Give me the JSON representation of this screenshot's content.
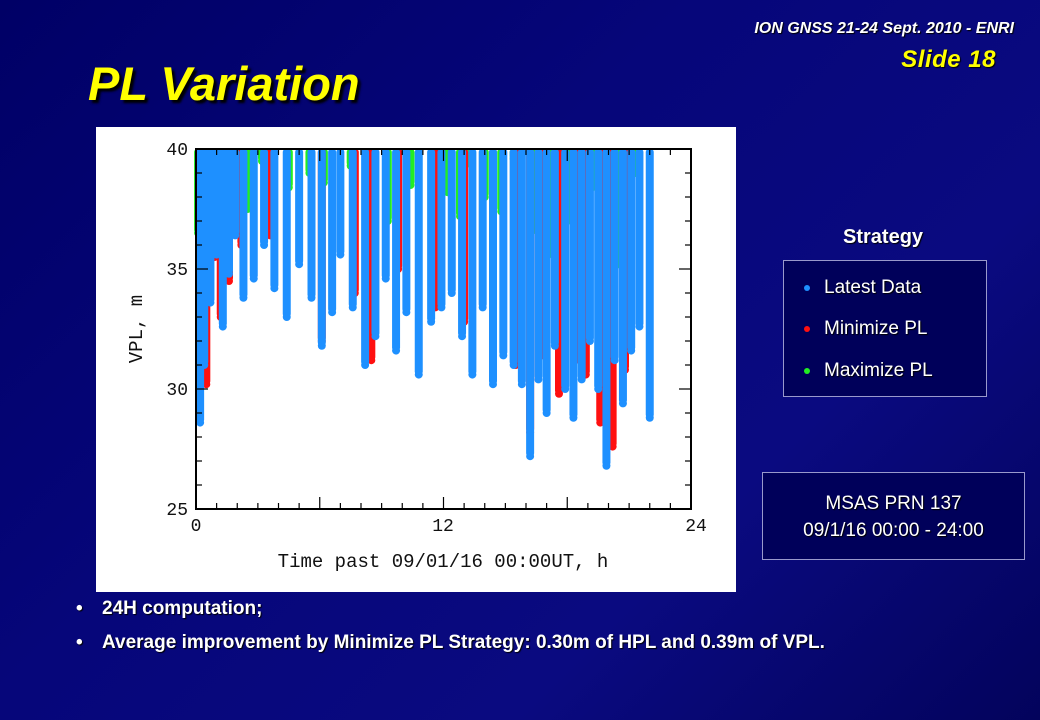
{
  "header": {
    "conference": "ION GNSS 21-24 Sept. 2010 - ENRI",
    "slide_label": "Slide 18",
    "title": "PL Variation"
  },
  "legend": {
    "heading": "Strategy",
    "items": [
      {
        "label": "Latest Data",
        "color": "#1e90ff"
      },
      {
        "label": "Minimize PL",
        "color": "#ff1010"
      },
      {
        "label": "Maximize PL",
        "color": "#22ee22"
      }
    ]
  },
  "info": {
    "line1": "MSAS PRN 137",
    "line2": "09/1/16 00:00 - 24:00"
  },
  "bullets": [
    "24H computation;",
    "Average improvement by Minimize PL Strategy: 0.30m of HPL and 0.39m of VPL."
  ],
  "chart_data": {
    "type": "scatter",
    "xlabel": "Time past 09/01/16 00:00UT, h",
    "ylabel": "VPL, m",
    "xlim": [
      0,
      24
    ],
    "ylim": [
      25,
      40
    ],
    "x_ticks": [
      "0",
      "12",
      "24"
    ],
    "y_ticks": [
      "25",
      "30",
      "35",
      "40"
    ],
    "grid": false,
    "series": [
      {
        "name": "Maximize PL",
        "color": "#22ee22",
        "x": [
          0.1,
          0.3,
          0.5,
          0.8,
          1.1,
          1.4,
          1.7,
          2.0,
          2.5,
          3.2,
          4.5,
          5.5,
          6.2,
          7.5,
          8.4,
          9.3,
          10.4,
          11.5,
          12.2,
          12.8,
          13.2,
          14.0,
          14.8,
          15.4,
          16.3,
          17.1,
          17.5,
          18.2,
          18.6,
          19.2,
          20.0,
          20.5,
          21.0,
          21.3
        ],
        "y": [
          36.5,
          35.0,
          38.2,
          39.6,
          37.0,
          34.8,
          39.2,
          38.0,
          37.5,
          39.5,
          38.4,
          39.0,
          38.6,
          39.3,
          39.6,
          37.0,
          38.5,
          39.8,
          38.2,
          37.2,
          39.4,
          38.0,
          37.4,
          39.6,
          36.6,
          35.6,
          36.8,
          37.0,
          36.2,
          38.4,
          36.5,
          35.2,
          37.8,
          39.0
        ]
      },
      {
        "name": "Minimize PL",
        "color": "#ff1010",
        "x": [
          0.2,
          0.5,
          0.9,
          1.2,
          1.6,
          2.2,
          3.6,
          6.1,
          7.7,
          8.5,
          9.8,
          11.6,
          13.0,
          14.4,
          15.5,
          16.2,
          16.8,
          17.6,
          18.4,
          18.9,
          19.6,
          20.2,
          20.8
        ],
        "y": [
          32.4,
          30.2,
          35.5,
          33.0,
          34.5,
          36.0,
          36.4,
          32.0,
          34.0,
          31.2,
          35.0,
          33.4,
          32.8,
          30.6,
          31.0,
          28.2,
          31.4,
          29.8,
          31.2,
          30.6,
          28.6,
          27.6,
          30.8
        ]
      },
      {
        "name": "Latest Data",
        "color": "#1e90ff",
        "x": [
          0.2,
          0.4,
          0.7,
          1.0,
          1.3,
          1.6,
          1.9,
          2.3,
          2.8,
          3.3,
          3.8,
          4.4,
          5.0,
          5.6,
          6.1,
          6.6,
          7.0,
          7.6,
          8.2,
          8.7,
          9.2,
          9.7,
          10.2,
          10.8,
          11.4,
          11.9,
          12.4,
          12.9,
          13.4,
          13.9,
          14.4,
          14.9,
          15.4,
          15.8,
          16.2,
          16.6,
          17.0,
          17.4,
          17.9,
          18.3,
          18.7,
          19.1,
          19.5,
          19.9,
          20.3,
          20.7,
          21.1,
          21.5,
          22.0
        ],
        "y": [
          28.6,
          31.0,
          33.6,
          35.6,
          32.6,
          34.8,
          36.4,
          33.8,
          34.6,
          36.0,
          34.2,
          33.0,
          35.2,
          33.8,
          31.8,
          33.2,
          35.6,
          33.4,
          31.0,
          32.2,
          34.6,
          31.6,
          33.2,
          30.6,
          32.8,
          33.4,
          34.0,
          32.2,
          30.6,
          33.4,
          30.2,
          31.4,
          31.0,
          30.2,
          27.2,
          30.4,
          29.0,
          31.8,
          30.0,
          28.8,
          30.4,
          32.0,
          30.0,
          26.8,
          31.2,
          29.4,
          31.6,
          32.6,
          28.8
        ]
      }
    ]
  }
}
